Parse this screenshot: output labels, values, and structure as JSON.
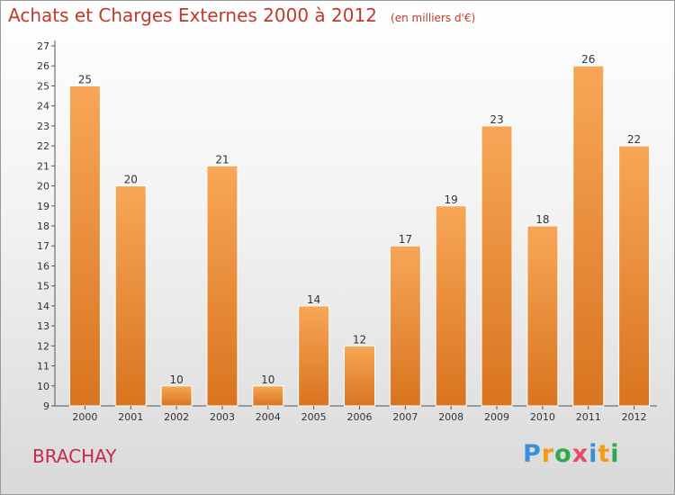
{
  "title": "Achats et Charges Externes 2000 à 2012",
  "unit": "(en milliers d'€)",
  "commune": "BRACHAY",
  "logo": {
    "text": "Proxiti",
    "letters": [
      {
        "ch": "P",
        "color": "#3a8fd6"
      },
      {
        "ch": "r",
        "color": "#f39c12"
      },
      {
        "ch": "o",
        "color": "#2eaa4a"
      },
      {
        "ch": "x",
        "color": "#e94b6c"
      },
      {
        "ch": "i",
        "color": "#3a8fd6"
      },
      {
        "ch": "t",
        "color": "#f39c12"
      },
      {
        "ch": "i",
        "color": "#2eaa4a"
      }
    ]
  },
  "colors": {
    "bar_top": "#f7a757",
    "bar_bottom": "#d9741f",
    "title": "#c0392b",
    "commune": "#c8284e"
  },
  "chart_data": {
    "type": "bar",
    "categories": [
      "2000",
      "2001",
      "2002",
      "2003",
      "2004",
      "2005",
      "2006",
      "2007",
      "2008",
      "2009",
      "2010",
      "2011",
      "2012"
    ],
    "values": [
      25,
      20,
      10,
      21,
      10,
      14,
      12,
      17,
      19,
      23,
      18,
      26,
      22
    ],
    "ylim": [
      9,
      27
    ],
    "yticks": [
      9,
      10,
      11,
      12,
      13,
      14,
      15,
      16,
      17,
      18,
      19,
      20,
      21,
      22,
      23,
      24,
      25,
      26,
      27
    ],
    "grid": false
  }
}
